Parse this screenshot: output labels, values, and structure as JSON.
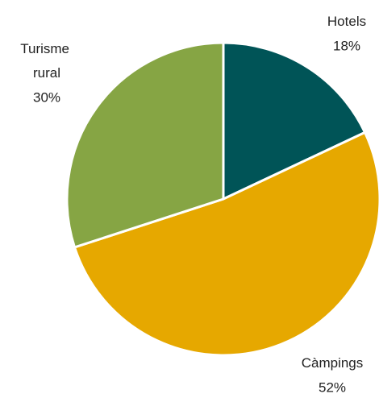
{
  "chart_data": {
    "type": "pie",
    "categories": [
      "Hotels",
      "Càmpings",
      "Turisme rural"
    ],
    "values": [
      18,
      52,
      30
    ],
    "value_labels": [
      "18%",
      "52%",
      "30%"
    ],
    "colors": [
      "#005457",
      "#e6a800",
      "#86a544"
    ]
  }
}
